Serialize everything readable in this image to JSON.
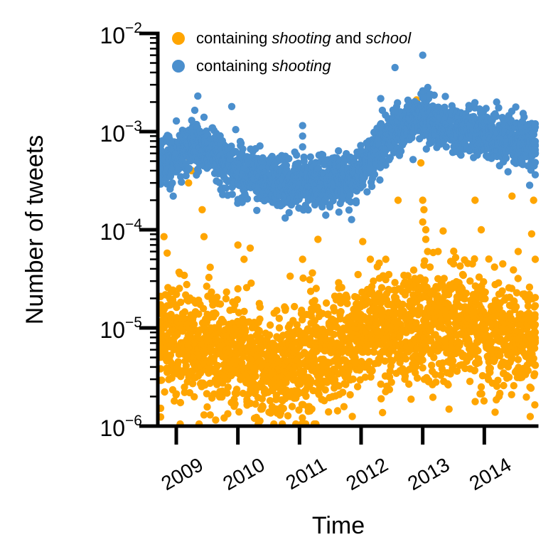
{
  "chart_data": {
    "type": "scatter",
    "title": "",
    "xlabel": "Time",
    "ylabel": "Number of tweets",
    "yscale": "log",
    "ylim": [
      1e-06,
      0.01
    ],
    "xlim": [
      2008.7,
      2014.85
    ],
    "y_ticks": [
      {
        "base": "10",
        "exp": "−6",
        "value": 1e-06
      },
      {
        "base": "10",
        "exp": "−5",
        "value": 1e-05
      },
      {
        "base": "10",
        "exp": "−4",
        "value": 0.0001
      },
      {
        "base": "10",
        "exp": "−3",
        "value": 0.001
      },
      {
        "base": "10",
        "exp": "−2",
        "value": 0.01
      }
    ],
    "x_ticks": [
      {
        "label": "2009",
        "value": 2009
      },
      {
        "label": "2010",
        "value": 2010
      },
      {
        "label": "2011",
        "value": 2011
      },
      {
        "label": "2012",
        "value": 2012
      },
      {
        "label": "2013",
        "value": 2013
      },
      {
        "label": "2014",
        "value": 2014
      }
    ],
    "legend": {
      "placement": "top-left",
      "entries": [
        {
          "prefix": "containing ",
          "word1": "shooting",
          "middle": " and ",
          "word2": "school",
          "color": "#ffa500"
        },
        {
          "prefix": "containing ",
          "word1": "shooting",
          "middle": "",
          "word2": "",
          "color": "#4b8fcd"
        }
      ]
    },
    "series": [
      {
        "name": "containing shooting and school",
        "color": "#ffa500",
        "baseline": [
          [
            2008.7,
            9e-06
          ],
          [
            2009.0,
            8e-06
          ],
          [
            2009.5,
            7e-06
          ],
          [
            2010.0,
            5.5e-06
          ],
          [
            2010.5,
            4e-06
          ],
          [
            2011.0,
            4.5e-06
          ],
          [
            2011.5,
            5.5e-06
          ],
          [
            2011.9,
            7e-06
          ],
          [
            2012.2,
            1.05e-05
          ],
          [
            2012.6,
            1e-05
          ],
          [
            2013.0,
            1.1e-05
          ],
          [
            2013.3,
            1.25e-05
          ],
          [
            2013.7,
            1.05e-05
          ],
          [
            2014.3,
            8.5e-06
          ],
          [
            2014.85,
            8e-06
          ]
        ],
        "spread_decades": 0.28,
        "outliers": [
          [
            2008.8,
            8.5e-05
          ],
          [
            2009.3,
            0.0011
          ],
          [
            2009.2,
            0.00055
          ],
          [
            2009.25,
            0.0004
          ],
          [
            2009.2,
            0.0003
          ],
          [
            2009.42,
            0.00016
          ],
          [
            2009.45,
            8.5e-05
          ],
          [
            2009.45,
            1.3e-06
          ],
          [
            2009.55,
            1.3e-06
          ],
          [
            2010.0,
            7e-05
          ],
          [
            2010.2,
            6.5e-05
          ],
          [
            2010.1,
            5e-05
          ],
          [
            2011.05,
            5e-05
          ],
          [
            2010.4,
            1.6e-06
          ],
          [
            2011.3,
            8e-05
          ],
          [
            2011.95,
            3.5e-05
          ],
          [
            2012.15,
            5e-05
          ],
          [
            2012.2,
            3e-05
          ],
          [
            2012.4,
            5e-05
          ],
          [
            2012.45,
            3.5e-05
          ],
          [
            2012.6,
            0.0002
          ],
          [
            2012.9,
            0.0021
          ],
          [
            2012.97,
            0.00048
          ],
          [
            2013.0,
            0.0002
          ],
          [
            2013.02,
            0.00016
          ],
          [
            2013.0,
            0.00012
          ],
          [
            2013.05,
            0.0001
          ],
          [
            2013.05,
            8e-05
          ],
          [
            2013.08,
            6e-05
          ],
          [
            2013.25,
            6e-05
          ],
          [
            2013.5,
            4.5e-05
          ],
          [
            2013.65,
            3.5e-05
          ],
          [
            2013.85,
            0.0002
          ],
          [
            2013.95,
            0.0001
          ],
          [
            2014.3,
            4.5e-05
          ],
          [
            2014.45,
            0.00022
          ],
          [
            2014.55,
            6e-05
          ],
          [
            2014.8,
            0.0002
          ],
          [
            2014.85,
            5e-05
          ]
        ]
      },
      {
        "name": "containing shooting",
        "color": "#4b8fcd",
        "baseline": [
          [
            2008.7,
            0.00045
          ],
          [
            2009.0,
            0.00055
          ],
          [
            2009.3,
            0.0007
          ],
          [
            2009.6,
            0.0006
          ],
          [
            2010.0,
            0.00038
          ],
          [
            2010.5,
            0.00033
          ],
          [
            2010.8,
            0.0003
          ],
          [
            2011.0,
            0.00029
          ],
          [
            2011.5,
            0.0003
          ],
          [
            2011.8,
            0.00033
          ],
          [
            2012.0,
            0.00038
          ],
          [
            2012.3,
            0.00075
          ],
          [
            2012.6,
            0.00105
          ],
          [
            2012.9,
            0.00125
          ],
          [
            2013.0,
            0.0014
          ],
          [
            2013.2,
            0.0012
          ],
          [
            2013.6,
            0.001
          ],
          [
            2014.0,
            0.00095
          ],
          [
            2014.5,
            0.0008
          ],
          [
            2014.85,
            0.0007
          ]
        ],
        "spread_decades": 0.12,
        "outliers": [
          [
            2009.35,
            0.0023
          ],
          [
            2009.45,
            0.0014
          ],
          [
            2009.25,
            0.0013
          ],
          [
            2009.9,
            0.0018
          ],
          [
            2011.05,
            0.00115
          ],
          [
            2011.05,
            0.0009
          ],
          [
            2011.05,
            0.0007
          ],
          [
            2012.55,
            0.0045
          ],
          [
            2013.0,
            0.006
          ],
          [
            2013.0,
            0.0026
          ],
          [
            2013.0,
            0.0022
          ],
          [
            2012.55,
            0.0016
          ],
          [
            2013.75,
            0.0017
          ],
          [
            2014.2,
            0.002
          ],
          [
            2012.75,
            0.0018
          ],
          [
            2008.95,
            0.00022
          ],
          [
            2008.9,
            0.00026
          ],
          [
            2014.85,
            0.0012
          ]
        ]
      }
    ]
  }
}
